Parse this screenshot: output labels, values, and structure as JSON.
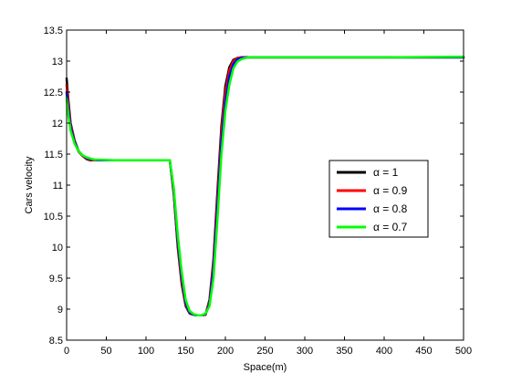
{
  "chart_data": {
    "type": "line",
    "xlabel": "Space(m)",
    "ylabel": "Cars velocity",
    "xlim": [
      0,
      500
    ],
    "ylim": [
      8.5,
      13.5
    ],
    "xticks": [
      0,
      50,
      100,
      150,
      200,
      250,
      300,
      350,
      400,
      450,
      500
    ],
    "yticks": [
      8.5,
      9,
      9.5,
      10,
      10.5,
      11,
      11.5,
      12,
      12.5,
      13,
      13.5
    ],
    "xtick_labels": [
      "0",
      "50",
      "100",
      "150",
      "200",
      "250",
      "300",
      "350",
      "400",
      "450",
      "500"
    ],
    "ytick_labels": [
      "8.5",
      "9",
      "9.5",
      "10",
      "10.5",
      "11",
      "11.5",
      "12",
      "12.5",
      "13",
      "13.5"
    ],
    "grid": false,
    "legend_position": "right",
    "series": [
      {
        "name": "α = 1",
        "color": "#000000",
        "x": [
          0,
          2,
          5,
          10,
          15,
          20,
          25,
          30,
          35,
          40,
          60,
          80,
          100,
          130,
          135,
          140,
          145,
          150,
          155,
          160,
          165,
          170,
          175,
          180,
          185,
          190,
          195,
          200,
          205,
          210,
          215,
          220,
          225,
          230,
          250,
          300,
          400,
          500
        ],
        "y": [
          12.72,
          12.4,
          12.0,
          11.72,
          11.55,
          11.47,
          11.42,
          11.4,
          11.4,
          11.4,
          11.4,
          11.4,
          11.4,
          11.4,
          10.85,
          10.0,
          9.4,
          9.05,
          8.93,
          8.91,
          8.9,
          8.9,
          8.91,
          9.15,
          9.8,
          10.9,
          11.95,
          12.6,
          12.9,
          13.02,
          13.05,
          13.06,
          13.06,
          13.06,
          13.06,
          13.06,
          13.06,
          13.06
        ]
      },
      {
        "name": "α = 0.9",
        "color": "#ff0000",
        "x": [
          0,
          2,
          5,
          10,
          15,
          20,
          25,
          30,
          35,
          40,
          60,
          80,
          100,
          130,
          135,
          140,
          145,
          150,
          155,
          160,
          165,
          170,
          175,
          180,
          185,
          190,
          195,
          200,
          205,
          210,
          215,
          220,
          225,
          230,
          250,
          300,
          400,
          500
        ],
        "y": [
          12.62,
          12.33,
          11.97,
          11.7,
          11.54,
          11.47,
          11.43,
          11.41,
          11.4,
          11.4,
          11.4,
          11.4,
          11.4,
          11.4,
          10.88,
          10.05,
          9.45,
          9.07,
          8.94,
          8.91,
          8.9,
          8.9,
          8.91,
          9.12,
          9.75,
          10.8,
          11.85,
          12.5,
          12.85,
          13.0,
          13.05,
          13.06,
          13.06,
          13.06,
          13.06,
          13.06,
          13.06,
          13.06
        ]
      },
      {
        "name": "α = 0.8",
        "color": "#0000ff",
        "x": [
          0,
          2,
          5,
          10,
          15,
          20,
          25,
          30,
          35,
          40,
          60,
          80,
          100,
          130,
          135,
          140,
          145,
          150,
          155,
          160,
          165,
          170,
          175,
          180,
          185,
          190,
          195,
          200,
          205,
          210,
          215,
          220,
          225,
          230,
          235,
          250,
          300,
          400,
          500
        ],
        "y": [
          12.5,
          12.24,
          11.93,
          11.69,
          11.55,
          11.48,
          11.44,
          11.42,
          11.41,
          11.4,
          11.4,
          11.4,
          11.4,
          11.4,
          10.92,
          10.12,
          9.52,
          9.1,
          8.95,
          8.91,
          8.9,
          8.9,
          8.92,
          9.08,
          9.65,
          10.65,
          11.7,
          12.35,
          12.75,
          12.95,
          13.03,
          13.05,
          13.06,
          13.06,
          13.06,
          13.06,
          13.06,
          13.06,
          13.06
        ]
      },
      {
        "name": "α = 0.7",
        "color": "#00ff00",
        "x": [
          0,
          2,
          5,
          10,
          15,
          20,
          25,
          30,
          35,
          40,
          60,
          80,
          100,
          130,
          135,
          140,
          145,
          150,
          155,
          160,
          165,
          170,
          175,
          180,
          185,
          190,
          195,
          200,
          205,
          210,
          215,
          220,
          225,
          230,
          235,
          240,
          250,
          300,
          400,
          500
        ],
        "y": [
          12.4,
          12.15,
          11.88,
          11.67,
          11.55,
          11.48,
          11.45,
          11.43,
          11.41,
          11.41,
          11.4,
          11.4,
          11.4,
          11.4,
          10.95,
          10.2,
          9.6,
          9.15,
          8.97,
          8.92,
          8.9,
          8.9,
          8.93,
          9.05,
          9.5,
          10.45,
          11.5,
          12.2,
          12.62,
          12.88,
          12.99,
          13.03,
          13.05,
          13.06,
          13.06,
          13.06,
          13.06,
          13.06,
          13.06,
          13.07
        ]
      }
    ]
  }
}
